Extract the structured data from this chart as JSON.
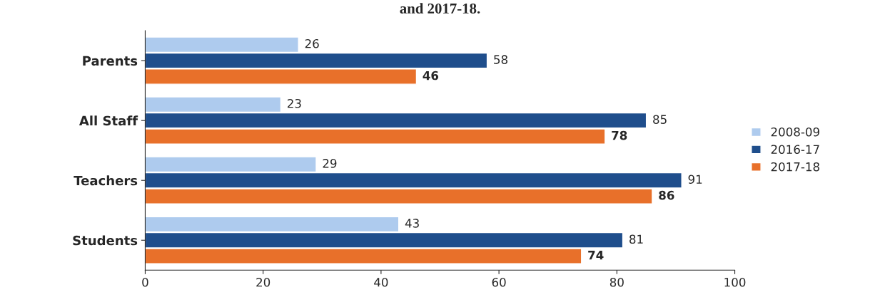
{
  "chart_data": {
    "type": "bar",
    "orientation": "horizontal",
    "title": "and 2017-18.",
    "categories": [
      "Parents",
      "All Staff",
      "Teachers",
      "Students"
    ],
    "series": [
      {
        "name": "2008-09",
        "color": "#aecbee",
        "values": [
          26,
          23,
          29,
          43
        ]
      },
      {
        "name": "2016-17",
        "color": "#1f4e8c",
        "values": [
          58,
          85,
          91,
          81
        ]
      },
      {
        "name": "2017-18",
        "color": "#e8702a",
        "values": [
          46,
          78,
          86,
          74
        ]
      }
    ],
    "xlim": [
      0,
      100
    ],
    "xticks": [
      0,
      20,
      40,
      60,
      80,
      100
    ],
    "data_labels": true,
    "legend": "right",
    "grid": false
  }
}
